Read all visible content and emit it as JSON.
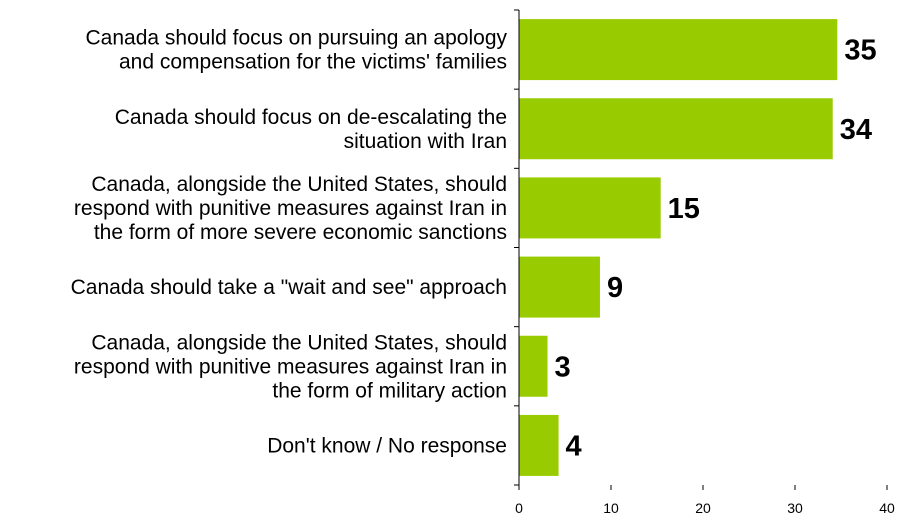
{
  "chart_data": {
    "type": "bar",
    "orientation": "horizontal",
    "categories": [
      [
        "Canada should focus on pursuing an apology",
        "and compensation for the victims' families"
      ],
      [
        "Canada should focus on de-escalating the",
        "situation with Iran"
      ],
      [
        "Canada, alongside the United States, should",
        "respond with punitive measures against Iran in",
        "the form of more severe economic sanctions"
      ],
      [
        "Canada should take a \"wait and see\" approach"
      ],
      [
        "Canada, alongside the United States, should",
        "respond with punitive measures against Iran in",
        "the form of military action"
      ],
      [
        "Don't know / No response"
      ]
    ],
    "values": [
      35,
      34,
      15,
      9,
      3,
      4
    ],
    "bar_lengths": [
      34.6,
      34.1,
      15.4,
      8.8,
      3.1,
      4.3
    ],
    "xlim": [
      0,
      40
    ],
    "xticks": [
      0,
      10,
      20,
      30,
      40
    ],
    "xlabel": "",
    "ylabel": "",
    "title": "",
    "grid": false,
    "legend": "none",
    "bar_color": "#99cc00"
  }
}
